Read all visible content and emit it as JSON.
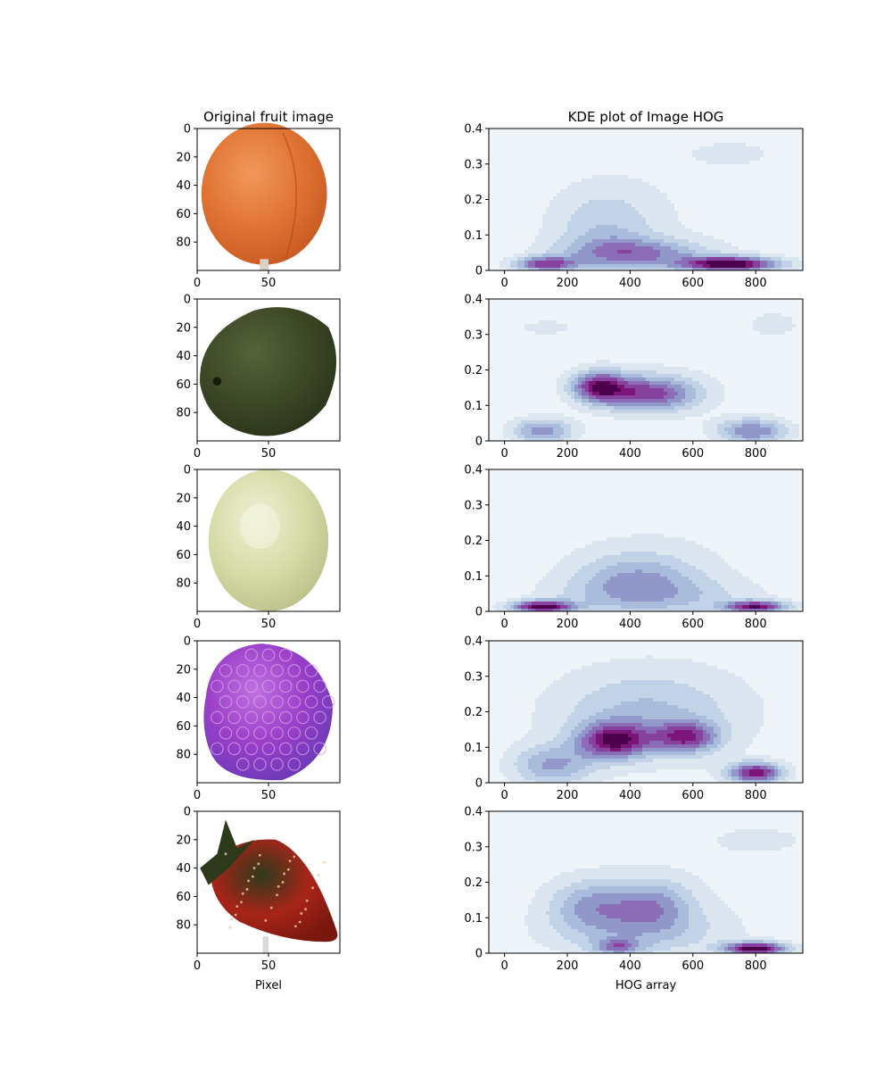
{
  "figure": {
    "left_title": "Original fruit image",
    "right_title": "KDE plot of Image HOG",
    "left_xlabel": "Pixel",
    "right_xlabel": "HOG array"
  },
  "chart_data": [
    {
      "type": "image",
      "column": "left",
      "row": 0,
      "content": "apricot",
      "colors": [
        "#e07434",
        "#c85a22",
        "#f0985a"
      ],
      "xticks": [
        0,
        50
      ],
      "yticks": [
        0,
        20,
        40,
        60,
        80
      ],
      "xlim": [
        0,
        100
      ],
      "ylim": [
        100,
        0
      ]
    },
    {
      "type": "image",
      "column": "left",
      "row": 1,
      "content": "avocado",
      "colors": [
        "#3e4a26",
        "#2a331a",
        "#56623a"
      ],
      "xticks": [
        0,
        50
      ],
      "yticks": [
        0,
        20,
        40,
        60,
        80
      ],
      "xlim": [
        0,
        100
      ],
      "ylim": [
        100,
        0
      ]
    },
    {
      "type": "image",
      "column": "left",
      "row": 2,
      "content": "grape",
      "colors": [
        "#d8dca8",
        "#bcc08a",
        "#eef0d4"
      ],
      "xticks": [
        0,
        50
      ],
      "yticks": [
        0,
        20,
        40,
        60,
        80
      ],
      "xlim": [
        0,
        100
      ],
      "ylim": [
        100,
        0
      ]
    },
    {
      "type": "image",
      "column": "left",
      "row": 3,
      "content": "raspberry",
      "colors": [
        "#9a3ec8",
        "#6a3ab8",
        "#c070e0"
      ],
      "xticks": [
        0,
        50
      ],
      "yticks": [
        0,
        20,
        40,
        60,
        80
      ],
      "xlim": [
        0,
        100
      ],
      "ylim": [
        100,
        0
      ]
    },
    {
      "type": "image",
      "column": "left",
      "row": 4,
      "content": "strawberry",
      "colors": [
        "#a82418",
        "#7a1810",
        "#2e3a1c"
      ],
      "xticks": [
        0,
        50
      ],
      "yticks": [
        0,
        20,
        40,
        60,
        80
      ],
      "xlim": [
        0,
        100
      ],
      "ylim": [
        100,
        0
      ]
    },
    {
      "type": "kde_contour",
      "column": "right",
      "row": 0,
      "xlim": [
        -50,
        950
      ],
      "ylim": [
        0,
        0.4
      ],
      "xticks": [
        0,
        200,
        400,
        600,
        800
      ],
      "yticks": [
        0.0,
        0.1,
        0.2,
        0.3,
        0.4
      ],
      "colormap": [
        "#eef4f8",
        "#dce6f0",
        "#c3d3e7",
        "#a9bcdc",
        "#9297c9",
        "#8b6cb6",
        "#87429f",
        "#7b1578",
        "#4d004b"
      ],
      "peaks": [
        {
          "x": 720,
          "y": 0.02,
          "sx": 110,
          "sy": 0.015,
          "w": 1.0
        },
        {
          "x": 130,
          "y": 0.02,
          "sx": 70,
          "sy": 0.015,
          "w": 0.7
        },
        {
          "x": 420,
          "y": 0.05,
          "sx": 160,
          "sy": 0.03,
          "w": 0.5
        },
        {
          "x": 320,
          "y": 0.12,
          "sx": 120,
          "sy": 0.08,
          "w": 0.28
        },
        {
          "x": 720,
          "y": 0.33,
          "sx": 80,
          "sy": 0.02,
          "w": 0.18
        },
        {
          "x": 500,
          "y": 0.2,
          "sx": 400,
          "sy": 0.2,
          "w": 0.08
        }
      ]
    },
    {
      "type": "kde_contour",
      "column": "right",
      "row": 1,
      "xlim": [
        -50,
        950
      ],
      "ylim": [
        0,
        0.4
      ],
      "xticks": [
        0,
        200,
        400,
        600,
        800
      ],
      "yticks": [
        0.0,
        0.1,
        0.2,
        0.3,
        0.4
      ],
      "colormap": [
        "#eef4f8",
        "#dce6f0",
        "#c3d3e7",
        "#a9bcdc",
        "#9297c9",
        "#8b6cb6",
        "#87429f",
        "#7b1578",
        "#4d004b"
      ],
      "peaks": [
        {
          "x": 300,
          "y": 0.155,
          "sx": 60,
          "sy": 0.03,
          "w": 0.9
        },
        {
          "x": 460,
          "y": 0.135,
          "sx": 110,
          "sy": 0.035,
          "w": 0.85
        },
        {
          "x": 120,
          "y": 0.03,
          "sx": 70,
          "sy": 0.025,
          "w": 0.6
        },
        {
          "x": 790,
          "y": 0.03,
          "sx": 80,
          "sy": 0.025,
          "w": 0.65
        },
        {
          "x": 130,
          "y": 0.32,
          "sx": 60,
          "sy": 0.015,
          "w": 0.18
        },
        {
          "x": 860,
          "y": 0.33,
          "sx": 70,
          "sy": 0.03,
          "w": 0.15
        },
        {
          "x": 500,
          "y": 0.2,
          "sx": 400,
          "sy": 0.2,
          "w": 0.08
        }
      ]
    },
    {
      "type": "kde_contour",
      "column": "right",
      "row": 2,
      "xlim": [
        -50,
        950
      ],
      "ylim": [
        0,
        0.4
      ],
      "xticks": [
        0,
        200,
        400,
        600,
        800
      ],
      "yticks": [
        0.0,
        0.1,
        0.2,
        0.3,
        0.4
      ],
      "colormap": [
        "#eef4f8",
        "#dce6f0",
        "#c3d3e7",
        "#a9bcdc",
        "#9297c9",
        "#8b6cb6",
        "#87429f",
        "#7b1578",
        "#4d004b"
      ],
      "peaks": [
        {
          "x": 120,
          "y": 0.015,
          "sx": 70,
          "sy": 0.012,
          "w": 0.95
        },
        {
          "x": 800,
          "y": 0.015,
          "sx": 70,
          "sy": 0.012,
          "w": 0.85
        },
        {
          "x": 420,
          "y": 0.1,
          "sx": 140,
          "sy": 0.05,
          "w": 0.35
        },
        {
          "x": 460,
          "y": 0.04,
          "sx": 220,
          "sy": 0.04,
          "w": 0.3
        },
        {
          "x": 500,
          "y": 0.18,
          "sx": 350,
          "sy": 0.15,
          "w": 0.1
        }
      ]
    },
    {
      "type": "kde_contour",
      "column": "right",
      "row": 3,
      "xlim": [
        -50,
        950
      ],
      "ylim": [
        0,
        0.4
      ],
      "xticks": [
        0,
        200,
        400,
        600,
        800
      ],
      "yticks": [
        0.0,
        0.1,
        0.2,
        0.3,
        0.4
      ],
      "colormap": [
        "#eef4f8",
        "#dce6f0",
        "#c3d3e7",
        "#a9bcdc",
        "#9297c9",
        "#8b6cb6",
        "#87429f",
        "#7b1578",
        "#4d004b"
      ],
      "peaks": [
        {
          "x": 350,
          "y": 0.12,
          "sx": 80,
          "sy": 0.035,
          "w": 0.85
        },
        {
          "x": 580,
          "y": 0.13,
          "sx": 70,
          "sy": 0.03,
          "w": 0.7
        },
        {
          "x": 800,
          "y": 0.03,
          "sx": 60,
          "sy": 0.02,
          "w": 0.9
        },
        {
          "x": 150,
          "y": 0.05,
          "sx": 90,
          "sy": 0.04,
          "w": 0.45
        },
        {
          "x": 450,
          "y": 0.2,
          "sx": 200,
          "sy": 0.08,
          "w": 0.3
        },
        {
          "x": 500,
          "y": 0.2,
          "sx": 420,
          "sy": 0.22,
          "w": 0.1
        }
      ]
    },
    {
      "type": "kde_contour",
      "column": "right",
      "row": 4,
      "xlim": [
        -50,
        950
      ],
      "ylim": [
        0,
        0.4
      ],
      "xticks": [
        0,
        200,
        400,
        600,
        800
      ],
      "yticks": [
        0.0,
        0.1,
        0.2,
        0.3,
        0.4
      ],
      "colormap": [
        "#eef4f8",
        "#dce6f0",
        "#c3d3e7",
        "#a9bcdc",
        "#9297c9",
        "#8b6cb6",
        "#87429f",
        "#7b1578",
        "#4d004b"
      ],
      "peaks": [
        {
          "x": 800,
          "y": 0.015,
          "sx": 70,
          "sy": 0.013,
          "w": 1.0
        },
        {
          "x": 360,
          "y": 0.02,
          "sx": 50,
          "sy": 0.015,
          "w": 0.45
        },
        {
          "x": 280,
          "y": 0.14,
          "sx": 100,
          "sy": 0.05,
          "w": 0.4
        },
        {
          "x": 480,
          "y": 0.14,
          "sx": 90,
          "sy": 0.05,
          "w": 0.4
        },
        {
          "x": 420,
          "y": 0.06,
          "sx": 200,
          "sy": 0.05,
          "w": 0.3
        },
        {
          "x": 820,
          "y": 0.32,
          "sx": 120,
          "sy": 0.03,
          "w": 0.12
        },
        {
          "x": 500,
          "y": 0.2,
          "sx": 420,
          "sy": 0.2,
          "w": 0.08
        }
      ]
    }
  ]
}
